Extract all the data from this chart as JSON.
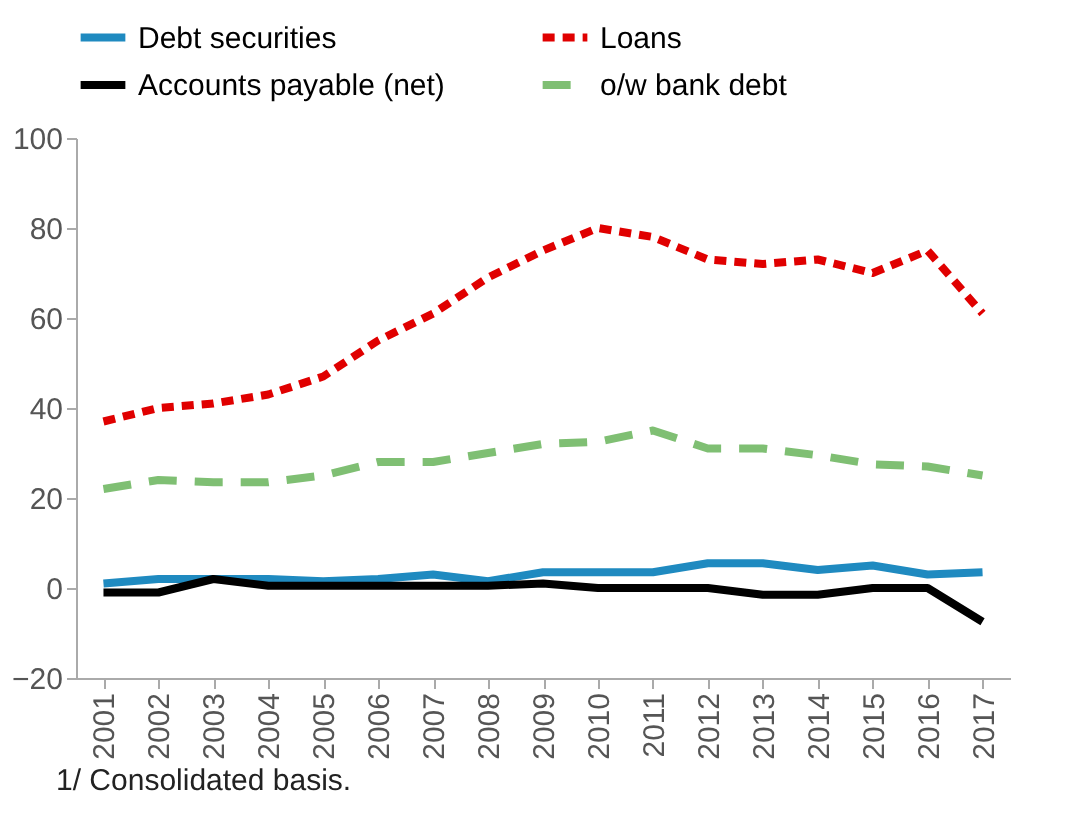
{
  "chart_data": {
    "type": "line",
    "categories": [
      "2001",
      "2002",
      "2003",
      "2004",
      "2005",
      "2006",
      "2007",
      "2008",
      "2009",
      "2010",
      "2011",
      "2012",
      "2013",
      "2014",
      "2015",
      "2016",
      "2017"
    ],
    "series": [
      {
        "name": "Debt securities",
        "color": "#1f8ac0",
        "line_style": "solid",
        "values": [
          1,
          2,
          2,
          2,
          1.5,
          2,
          3,
          1.5,
          3.5,
          3.5,
          3.5,
          5.5,
          5.5,
          4,
          5,
          3,
          3.5
        ]
      },
      {
        "name": "Loans",
        "color": "#e00000",
        "line_style": "dotted",
        "values": [
          37,
          40,
          41,
          43,
          47,
          55,
          61,
          69,
          75,
          80,
          78,
          73,
          72,
          73,
          70,
          75,
          61
        ]
      },
      {
        "name": "Accounts payable (net)",
        "color": "#000000",
        "line_style": "solid",
        "values": [
          -1,
          -1,
          2,
          0.5,
          0.5,
          0.5,
          0.5,
          0.5,
          1,
          0,
          0,
          0,
          -1.5,
          -1.5,
          0,
          0,
          -7.5
        ]
      },
      {
        "name": "o/w bank debt",
        "color": "#7fbf73",
        "line_style": "dashed",
        "values": [
          22,
          24,
          23.5,
          23.5,
          25,
          28,
          28,
          30,
          32,
          32.5,
          35,
          31,
          31,
          29.5,
          27.5,
          27,
          25
        ]
      }
    ],
    "ylim": [
      -20,
      100
    ],
    "yticks": [
      -20,
      0,
      20,
      40,
      60,
      80,
      100
    ],
    "grid": false,
    "legend": "top",
    "marker": "none",
    "annotations": [
      "1/ Consolidated basis."
    ]
  }
}
